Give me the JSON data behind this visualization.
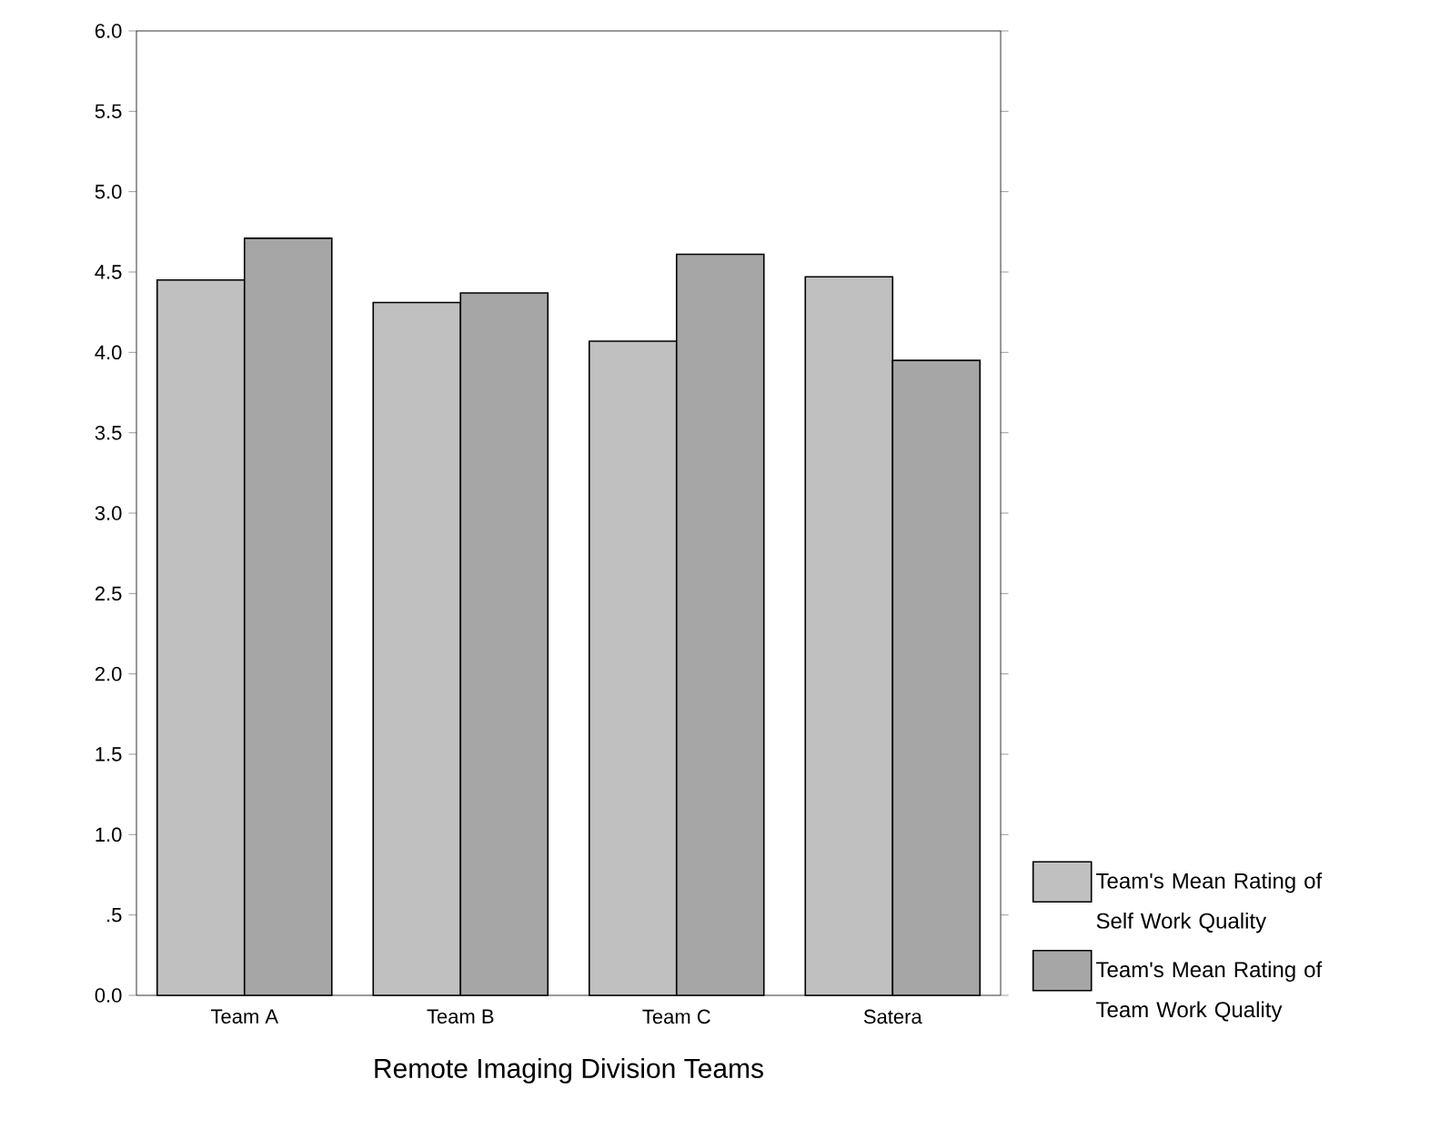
{
  "chart_data": {
    "type": "bar",
    "xlabel": "Remote Imaging Division Teams",
    "categories": [
      "Team A",
      "Team B",
      "Team C",
      "Satera"
    ],
    "series": [
      {
        "name": "Team's Mean Rating of Self Work Quality",
        "color": "#c0c0c0",
        "values": [
          4.45,
          4.31,
          4.07,
          4.47
        ]
      },
      {
        "name": "Team's Mean Rating of Team Work Quality",
        "color": "#a6a6a6",
        "values": [
          4.71,
          4.37,
          4.61,
          3.95
        ]
      }
    ],
    "ylim": [
      0,
      6
    ],
    "yticks": [
      {
        "value": 0,
        "label": "0.0"
      },
      {
        "value": 0.5,
        "label": ".5"
      },
      {
        "value": 1,
        "label": "1.0"
      },
      {
        "value": 1.5,
        "label": "1.5"
      },
      {
        "value": 2,
        "label": "2.0"
      },
      {
        "value": 2.5,
        "label": "2.5"
      },
      {
        "value": 3,
        "label": "3.0"
      },
      {
        "value": 3.5,
        "label": "3.5"
      },
      {
        "value": 4,
        "label": "4.0"
      },
      {
        "value": 4.5,
        "label": "4.5"
      },
      {
        "value": 5,
        "label": "5.0"
      },
      {
        "value": 5.5,
        "label": "5.5"
      },
      {
        "value": 6,
        "label": "6.0"
      }
    ],
    "grid": false,
    "legend": "right"
  }
}
